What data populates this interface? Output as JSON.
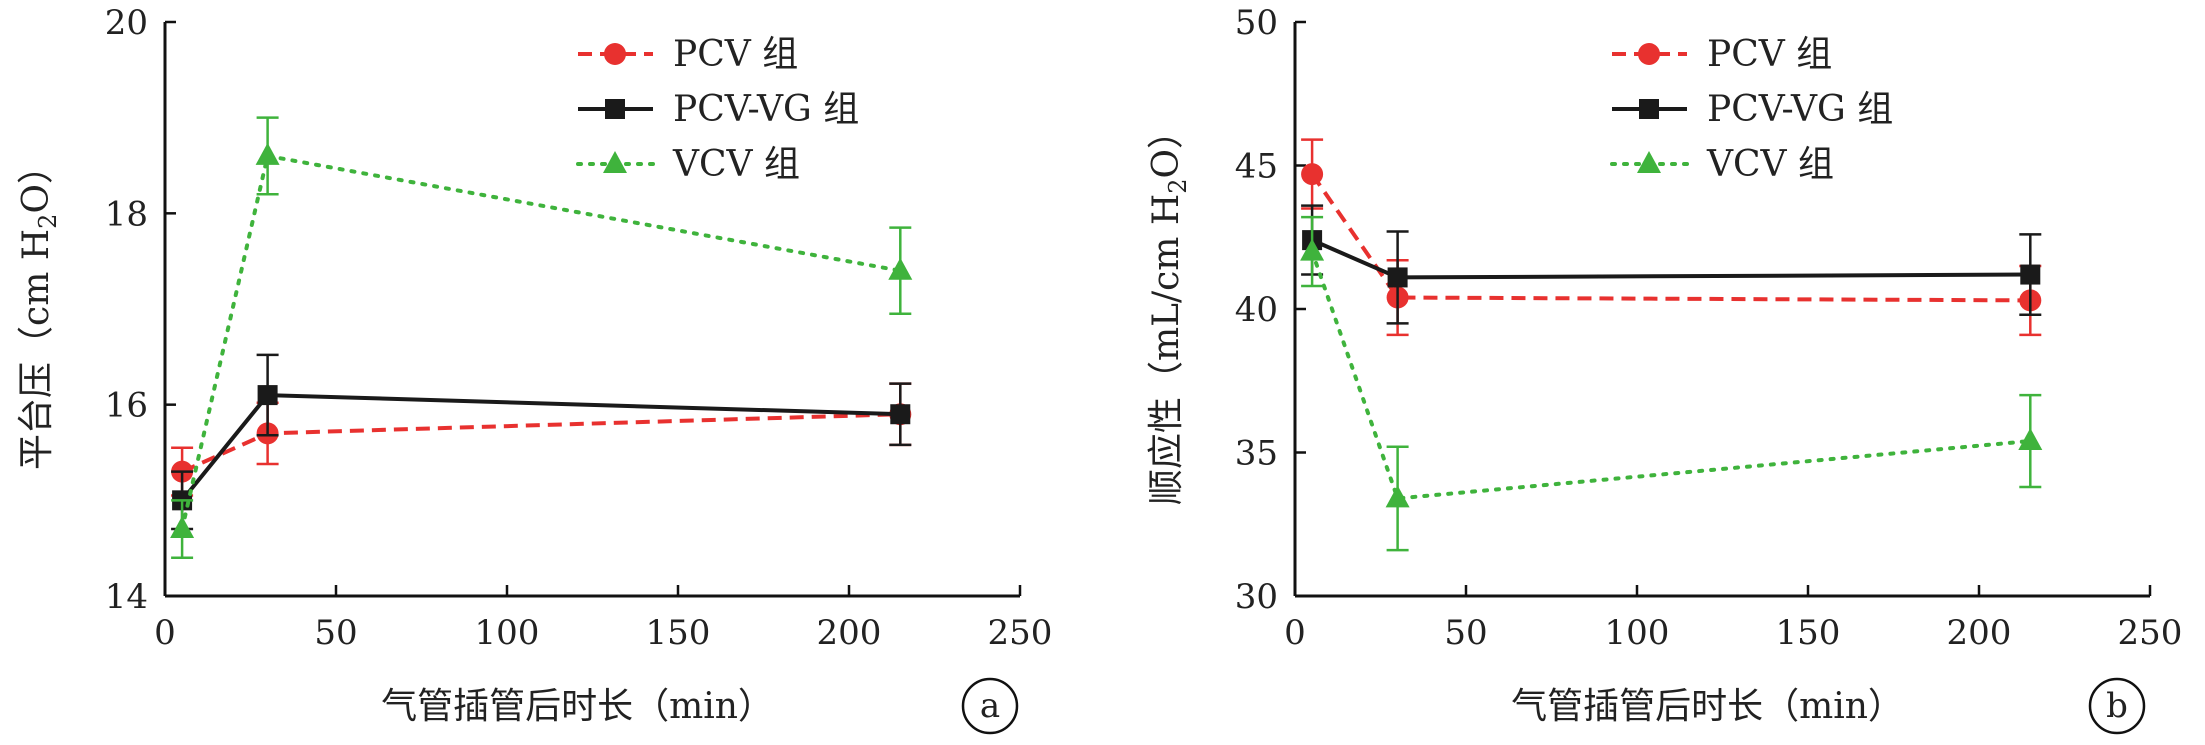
{
  "chart_data": [
    {
      "panel_label": "a",
      "type": "line",
      "xlabel": "气管插管后时长（min）",
      "ylabel_main": "平台压（cm H",
      "ylabel_sub": "2",
      "ylabel_end": "O）",
      "xlim": [
        0,
        250
      ],
      "ylim": [
        14,
        20
      ],
      "xticks": [
        0,
        50,
        100,
        150,
        200,
        250
      ],
      "yticks": [
        14,
        16,
        18,
        20
      ],
      "legend_position": "top-center",
      "grid": false,
      "series": [
        {
          "name": "PCV 组",
          "color": "#e8312f",
          "marker": "circle",
          "dash": "dashed",
          "x": [
            5,
            30,
            215
          ],
          "y": [
            15.3,
            15.7,
            15.9
          ],
          "err": [
            0.25,
            0.32,
            0.32
          ]
        },
        {
          "name": "PCV-VG 组",
          "color": "#1a1a1a",
          "marker": "square",
          "dash": "solid",
          "x": [
            5,
            30,
            215
          ],
          "y": [
            15.0,
            16.1,
            15.9
          ],
          "err": [
            0.3,
            0.42,
            0.32
          ]
        },
        {
          "name": "VCV 组",
          "color": "#3fb33c",
          "marker": "triangle",
          "dash": "dotted",
          "x": [
            5,
            30,
            215
          ],
          "y": [
            14.7,
            18.6,
            17.4
          ],
          "err": [
            0.3,
            0.4,
            0.45
          ]
        }
      ]
    },
    {
      "panel_label": "b",
      "type": "line",
      "xlabel": "气管插管后时长（min）",
      "ylabel_main": "顺应性（mL/cm H",
      "ylabel_sub": "2",
      "ylabel_end": "O）",
      "xlim": [
        0,
        250
      ],
      "ylim": [
        30,
        50
      ],
      "xticks": [
        0,
        50,
        100,
        150,
        200,
        250
      ],
      "yticks": [
        30,
        35,
        40,
        45,
        50
      ],
      "legend_position": "top-center",
      "grid": false,
      "series": [
        {
          "name": "PCV 组",
          "color": "#e8312f",
          "marker": "circle",
          "dash": "dashed",
          "x": [
            5,
            30,
            215
          ],
          "y": [
            44.7,
            40.4,
            40.3
          ],
          "err": [
            1.2,
            1.3,
            1.2
          ]
        },
        {
          "name": "PCV-VG 组",
          "color": "#1a1a1a",
          "marker": "square",
          "dash": "solid",
          "x": [
            5,
            30,
            215
          ],
          "y": [
            42.4,
            41.1,
            41.2
          ],
          "err": [
            1.2,
            1.6,
            1.4
          ]
        },
        {
          "name": "VCV 组",
          "color": "#3fb33c",
          "marker": "triangle",
          "dash": "dotted",
          "x": [
            5,
            30,
            215
          ],
          "y": [
            42.0,
            33.4,
            35.4
          ],
          "err": [
            1.2,
            1.8,
            1.6
          ]
        }
      ]
    }
  ]
}
